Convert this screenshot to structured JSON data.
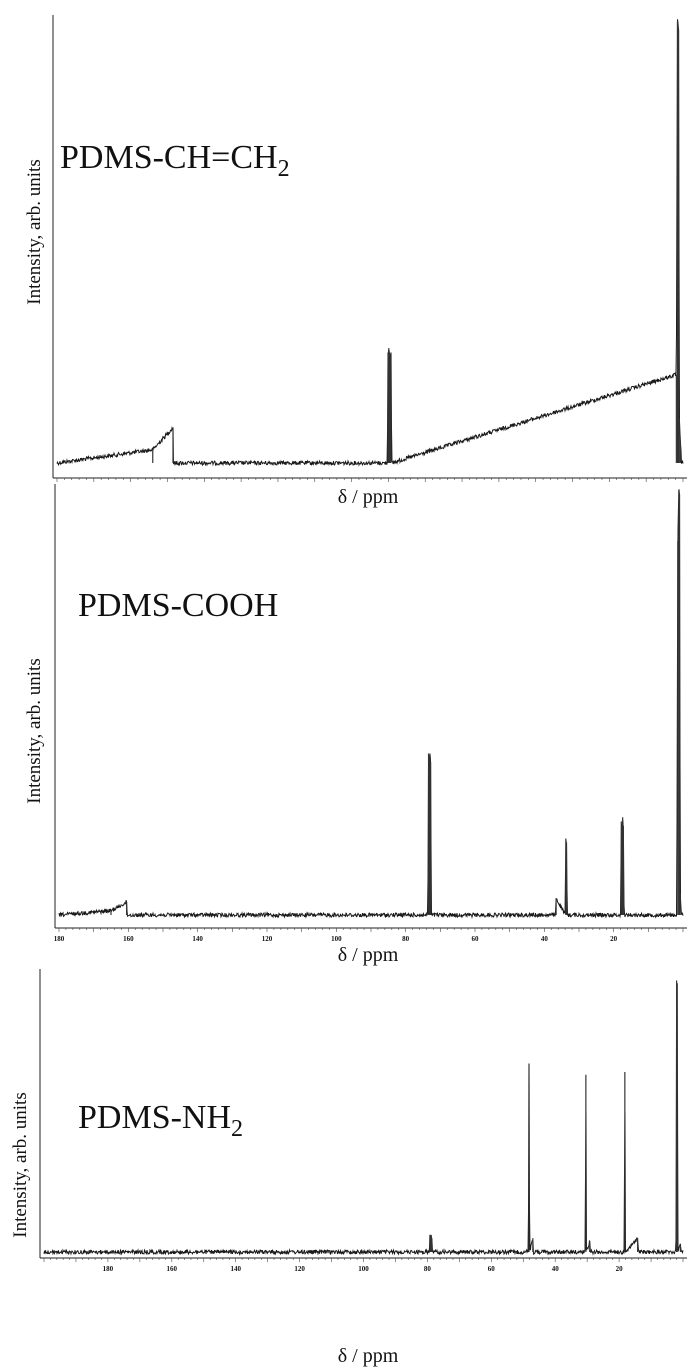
{
  "chart_data": [
    {
      "type": "line",
      "title": "PDMS-CH=CH",
      "title_sub": "2",
      "ylabel": "Intensity, arb. units",
      "xlabel": "δ / ppm",
      "xlim": [
        170,
        0
      ],
      "tick_labels": [],
      "series": [
        {
          "x": [
            170,
            144,
            138.5,
            138.4,
            134,
            80.3,
            80.1,
            79.9,
            79.7,
            79.5,
            79.3,
            79.1,
            1.8,
            1.5,
            1.2,
            1.0,
            0.7,
            0.4
          ],
          "y": [
            0.0,
            0.03,
            0.08,
            0.0,
            0.0,
            0.0,
            0.25,
            0.26,
            0.25,
            0.24,
            0.25,
            0.0,
            0.2,
            1.0,
            0.98,
            0.1,
            0.05,
            0.0
          ]
        }
      ]
    },
    {
      "type": "line",
      "title": "PDMS-COOH",
      "title_sub": "",
      "ylabel": "Intensity, arb. units",
      "xlabel": "δ / ppm",
      "xlim": [
        180,
        0
      ],
      "tick_labels": [
        "180",
        "160",
        "140",
        "120",
        "100",
        "80",
        "60",
        "40",
        "20"
      ],
      "series": [
        {
          "x": [
            180,
            165,
            160.5,
            160.3,
            150,
            73.6,
            73.4,
            73.2,
            73.0,
            72.8,
            72.6,
            36.8,
            36.6,
            34.0,
            33.8,
            33.6,
            33.4,
            18.0,
            17.8,
            17.6,
            17.4,
            17.2,
            17.0,
            1.8,
            1.5,
            1.2,
            1.0,
            0.8,
            0.5
          ],
          "y": [
            0.0,
            0.01,
            0.03,
            0.0,
            0.0,
            0.0,
            0.38,
            0.37,
            0.38,
            0.36,
            0.0,
            0.0,
            0.04,
            0.0,
            0.18,
            0.17,
            0.0,
            0.0,
            0.22,
            0.2,
            0.23,
            0.21,
            0.0,
            0.0,
            0.88,
            1.0,
            0.99,
            0.05,
            0.0
          ]
        }
      ]
    },
    {
      "type": "line",
      "title": "PDMS-NH",
      "title_sub": "2",
      "ylabel": "Intensity, arb. units",
      "xlabel": "δ / ppm",
      "xlim": [
        200,
        0
      ],
      "tick_labels": [
        "180",
        "160",
        "140",
        "120",
        "100",
        "80",
        "60",
        "40",
        "20"
      ],
      "series": [
        {
          "x": [
            200,
            79.4,
            79.2,
            79.0,
            78.8,
            78.6,
            78.4,
            48.4,
            48.2,
            48.0,
            47.0,
            46.8,
            30.6,
            30.4,
            30.2,
            29.2,
            29.0,
            18.4,
            18.2,
            18.0,
            14.2,
            14.0,
            2.2,
            2.0,
            1.8,
            1.6,
            0.8,
            0.6,
            0.3
          ],
          "y": [
            0.0,
            0.0,
            0.06,
            0.05,
            0.06,
            0.05,
            0.0,
            0.0,
            0.68,
            0.0,
            0.05,
            0.0,
            0.0,
            0.64,
            0.0,
            0.04,
            0.0,
            0.0,
            0.65,
            0.0,
            0.05,
            0.0,
            0.0,
            0.98,
            0.97,
            0.0,
            0.03,
            0.0,
            0.0
          ]
        }
      ]
    }
  ]
}
